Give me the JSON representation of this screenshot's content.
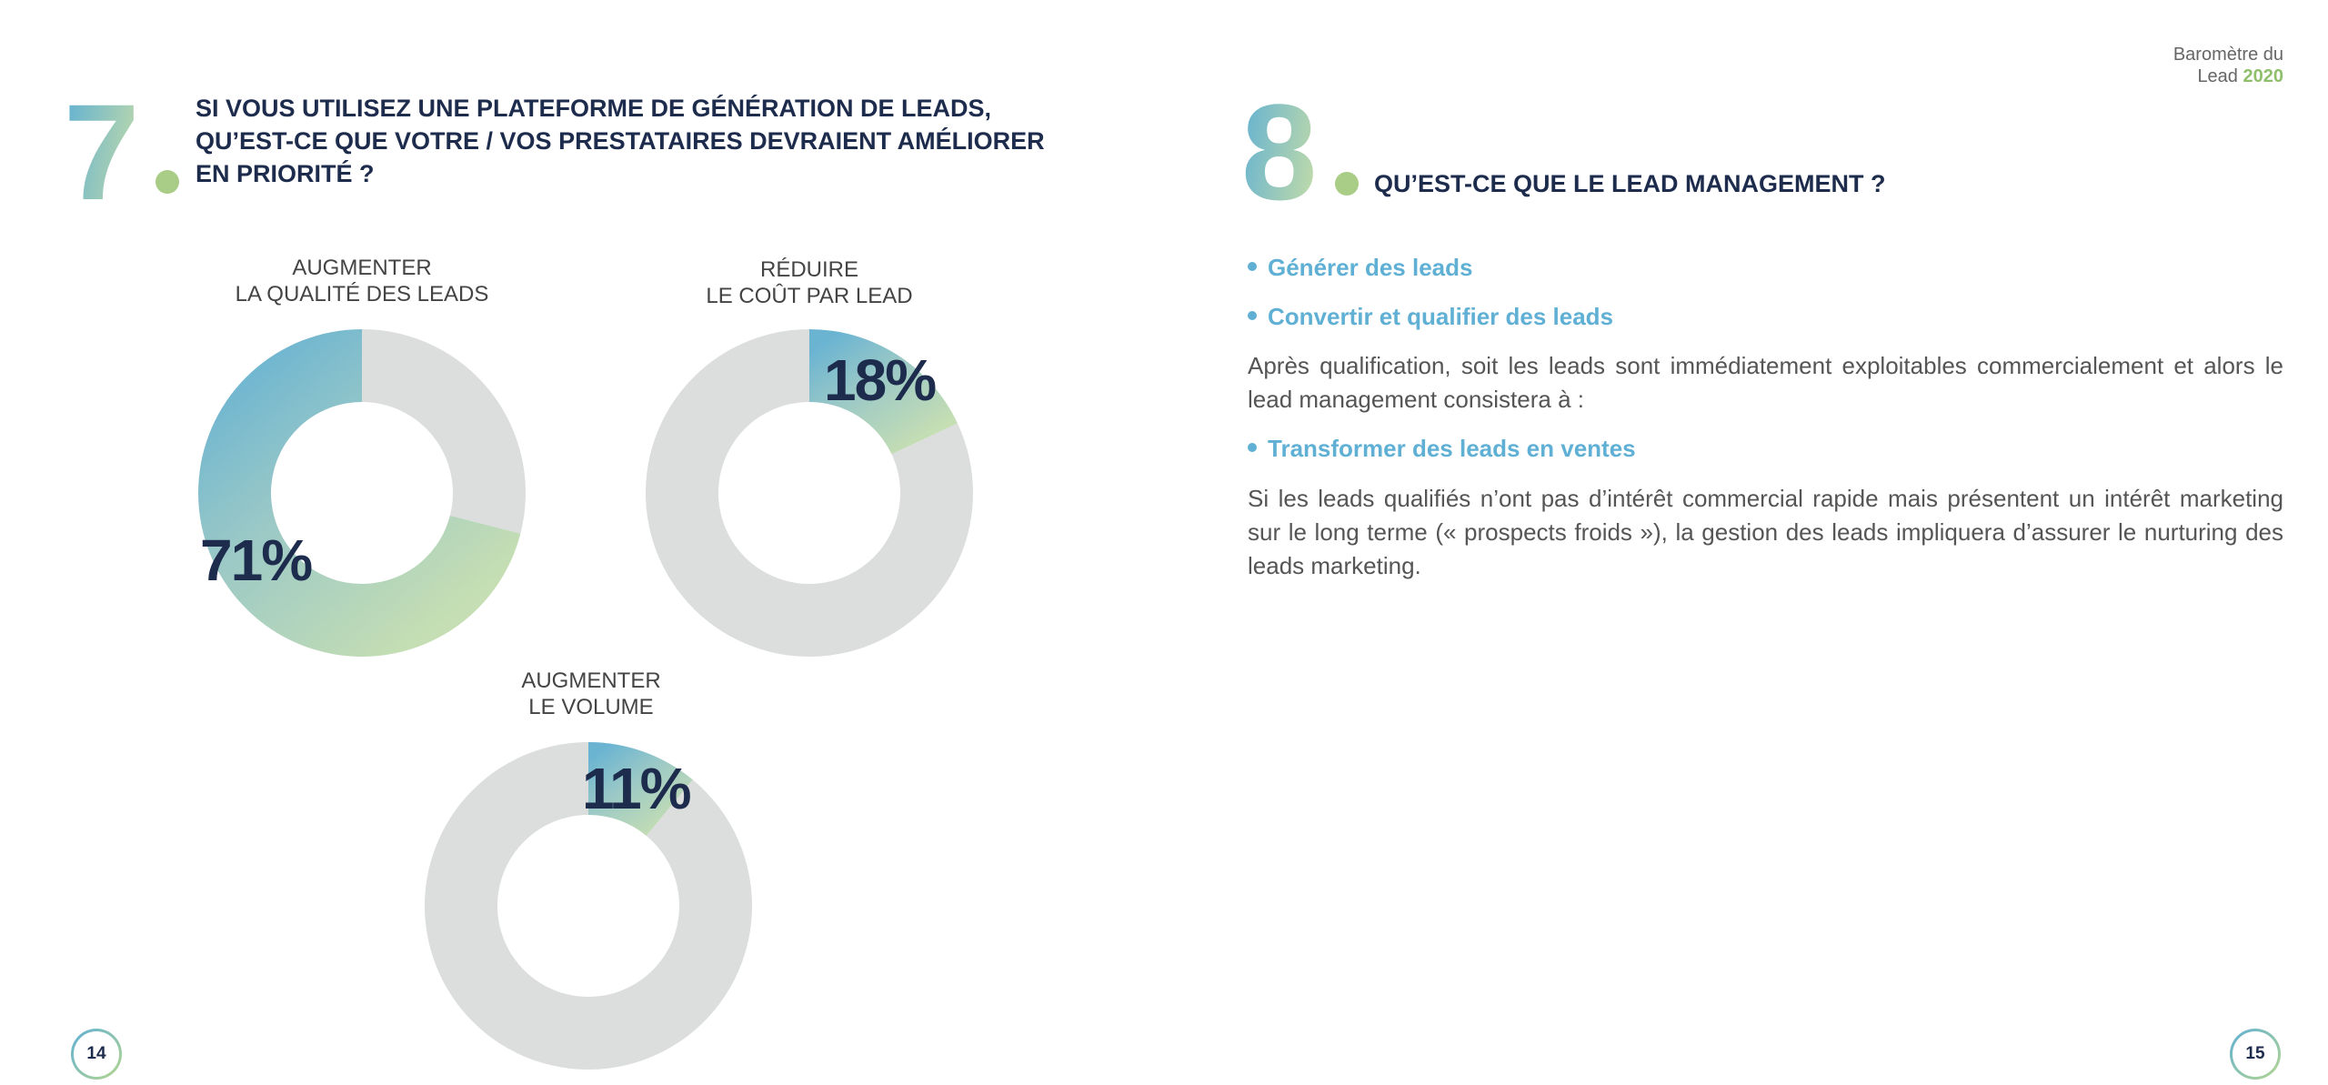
{
  "header": {
    "line1": "Baromètre du",
    "line2_prefix": "Lead ",
    "year": "2020"
  },
  "left_page": {
    "question_number": "7",
    "question_lines": [
      "SI VOUS UTILISEZ UNE PLATEFORME DE GÉNÉRATION DE LEADS,",
      "QU’EST-CE QUE VOTRE / VOS PRESTATAIRES DEVRAIENT AMÉLIORER",
      "EN PRIORITÉ ?"
    ],
    "page_number": "14"
  },
  "chart_data": [
    {
      "type": "pie",
      "variant": "donut",
      "title_lines": [
        "AUGMENTER",
        "LA QUALITÉ DES LEADS"
      ],
      "value": 71,
      "label": "71%",
      "direction": "counterclockwise"
    },
    {
      "type": "pie",
      "variant": "donut",
      "title_lines": [
        "RÉDUIRE",
        "LE COÛT PAR LEAD"
      ],
      "value": 18,
      "label": "18%",
      "direction": "clockwise"
    },
    {
      "type": "pie",
      "variant": "donut",
      "title_lines": [
        "AUGMENTER",
        "LE VOLUME"
      ],
      "value": 11,
      "label": "11%",
      "direction": "clockwise"
    }
  ],
  "colors": {
    "blue": "#6ab4d2",
    "green": "#c5deb3",
    "gray": "#dcdddd",
    "navy": "#1d2b4c"
  },
  "right_page": {
    "question_number": "8",
    "question": "QU’EST-CE QUE LE LEAD MANAGEMENT ?",
    "bullets": [
      "Générer des leads",
      "Convertir et qualifier des leads",
      "Transformer des leads en ventes"
    ],
    "paragraph1": "Après qualification, soit les leads sont immédiatement exploitables commercialement et alors le lead management consistera à :",
    "paragraph2": "Si les leads qualifiés n’ont pas d’intérêt commercial rapide mais présentent un intérêt marketing sur le long terme (« prospects froids »), la gestion des leads impliquera d’assurer le nurturing des leads marketing.",
    "page_number": "15"
  }
}
